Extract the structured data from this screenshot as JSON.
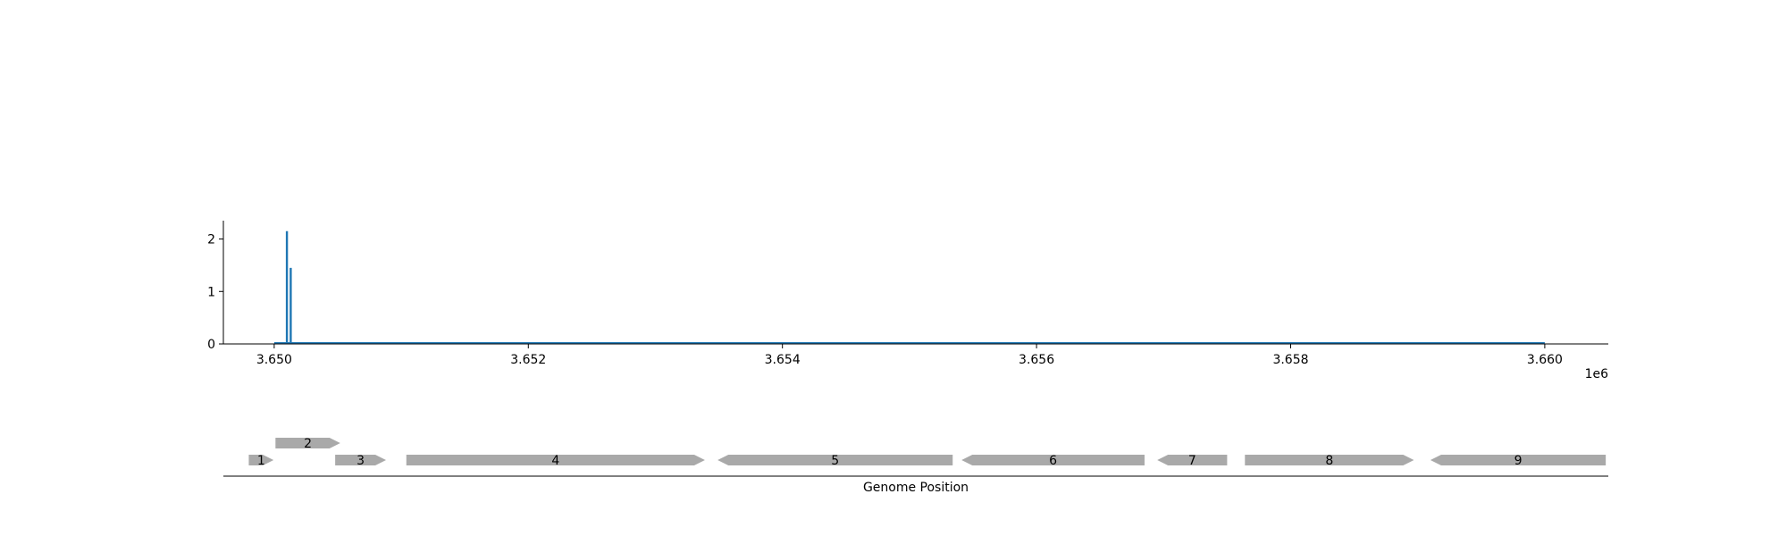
{
  "chart_data": [
    {
      "type": "bar",
      "title": "",
      "xlabel": "",
      "ylabel": "",
      "xlim": [
        3649600,
        3660500
      ],
      "ylim": [
        0,
        2.35
      ],
      "x_offset_label": "1e6",
      "x_ticks": [
        3650000,
        3652000,
        3654000,
        3656000,
        3658000,
        3660000
      ],
      "x_tick_labels": [
        "3.650",
        "3.652",
        "3.654",
        "3.656",
        "3.658",
        "3.660"
      ],
      "y_ticks": [
        0,
        1,
        2
      ],
      "y_tick_labels": [
        "0",
        "1",
        "2"
      ],
      "baseline_range": [
        3650000,
        3660000
      ],
      "series": [
        {
          "color": "#1f77b4",
          "x": [
            3650100,
            3650130
          ],
          "values": [
            2.15,
            1.45
          ]
        }
      ],
      "grid": false
    },
    {
      "type": "gene-track",
      "xlabel": "Genome Position",
      "color": "#a9a9a9",
      "genes": [
        {
          "label": "1",
          "start": 3649800,
          "end": 3649995,
          "strand": "+",
          "row": 0
        },
        {
          "label": "2",
          "start": 3650010,
          "end": 3650520,
          "strand": "+",
          "row": 1
        },
        {
          "label": "3",
          "start": 3650480,
          "end": 3650880,
          "strand": "+",
          "row": 0
        },
        {
          "label": "4",
          "start": 3651040,
          "end": 3653390,
          "strand": "+",
          "row": 0
        },
        {
          "label": "5",
          "start": 3653490,
          "end": 3655340,
          "strand": "-",
          "row": 0
        },
        {
          "label": "6",
          "start": 3655410,
          "end": 3656850,
          "strand": "-",
          "row": 0
        },
        {
          "label": "7",
          "start": 3656950,
          "end": 3657500,
          "strand": "-",
          "row": 0
        },
        {
          "label": "8",
          "start": 3657640,
          "end": 3658970,
          "strand": "+",
          "row": 0
        },
        {
          "label": "9",
          "start": 3659100,
          "end": 3660480,
          "strand": "-",
          "row": 0
        }
      ]
    }
  ]
}
